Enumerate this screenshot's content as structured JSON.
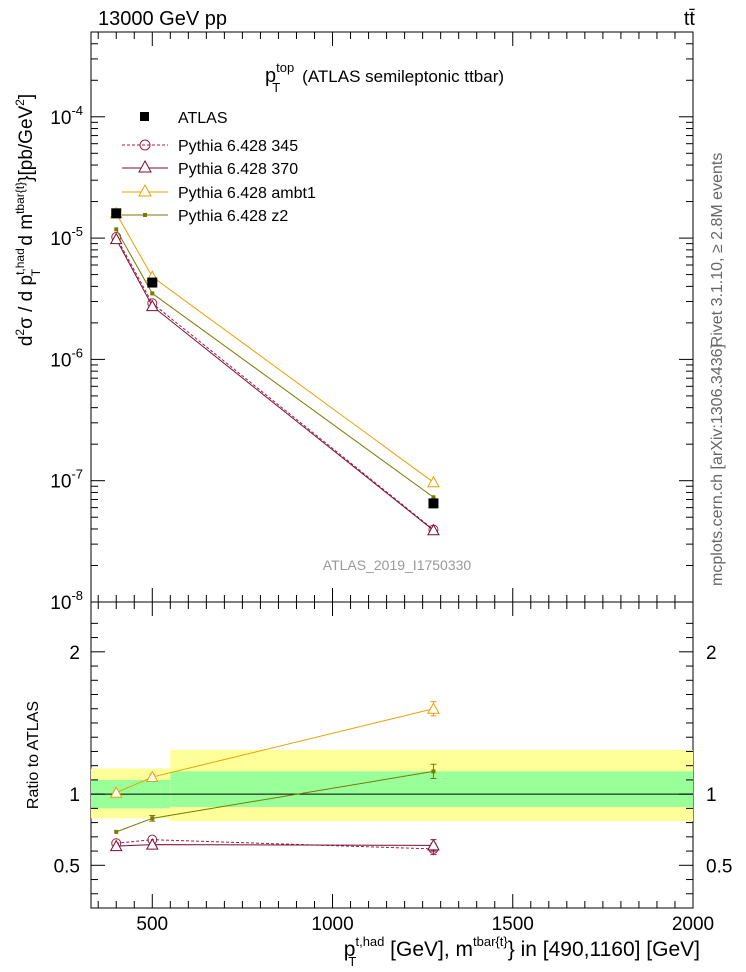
{
  "header": {
    "energy_label": "13000 GeV pp",
    "process_label": "tt̄"
  },
  "side_labels": {
    "rivet": "Rivet 3.1.10, ≥ 2.8M events",
    "mcplots": "mcplots.cern.ch [arXiv:1306.3436]"
  },
  "chart_data": {
    "type": "line",
    "title": "(ATLAS semileptonic ttbar)",
    "title_var": "p",
    "title_sup": "top",
    "title_sub": "T",
    "analysis_label": "ATLAS_2019_I1750330",
    "xlabel": "p_T^{t,had} [GeV], m^{tbar{t}} in [490,1160] [GeV]",
    "xlabel_parts": {
      "p": "p",
      "p_sup": "t,had",
      "p_sub": "T",
      "mid": " [GeV], m",
      "m_sup": "tbar{t}",
      "tail": "} in [490,1160] [GeV]"
    },
    "ylabel": "d²σ / d p_T^{t,had} d m^{tbar{t}}}[pb/GeV²]",
    "ylabel_parts": {
      "d": "d",
      "d_sup": "2",
      "sigma": "σ / d p",
      "p_sup": "t,had",
      "p_sub": "T",
      "mid": " d m",
      "m_sup": "tbar{t}",
      "tail": "}[pb/GeV",
      "tail_sup": "2",
      "close": "]"
    },
    "ratio_ylabel": "Ratio to ATLAS",
    "xlim": [
      330,
      2000
    ],
    "ylim": [
      1e-08,
      0.0005
    ],
    "yscale": "log",
    "ratio_ylim": [
      0.2,
      2.35
    ],
    "x_ticks": [
      500,
      1000,
      1500,
      2000
    ],
    "y_ticks": [
      {
        "base": "10",
        "exp": "-8",
        "value": 1e-08
      },
      {
        "base": "10",
        "exp": "-7",
        "value": 1e-07
      },
      {
        "base": "10",
        "exp": "-6",
        "value": 1e-06
      },
      {
        "base": "10",
        "exp": "-5",
        "value": 1e-05
      },
      {
        "base": "10",
        "exp": "-4",
        "value": 0.0001
      }
    ],
    "ratio_ticks": [
      {
        "label": "0.5",
        "value": 0.5
      },
      {
        "label": "1",
        "value": 1
      },
      {
        "label": "2",
        "value": 2
      }
    ],
    "legend_position": "top-left",
    "data": {
      "name": "ATLAS",
      "color": "#000000",
      "x": [
        400,
        500,
        1280
      ],
      "y": [
        1.6e-05,
        4.3e-06,
        6.5e-08
      ],
      "band_bins": [
        [
          330,
          550
        ],
        [
          550,
          2000
        ]
      ],
      "band_inner": [
        [
          0.9,
          1.1
        ],
        [
          0.91,
          1.16
        ]
      ],
      "band_outer": [
        [
          0.83,
          1.18
        ],
        [
          0.81,
          1.31
        ]
      ]
    },
    "series": [
      {
        "name": "Pythia 6.428 345",
        "color": "#a0203c",
        "marker": "open-circle",
        "dashed": true,
        "x": [
          400,
          500,
          1280
        ],
        "y": [
          1.02e-05,
          2.9e-06,
          3.95e-08
        ],
        "ratio": [
          0.655,
          0.68,
          0.615
        ],
        "ratio_err": [
          0.01,
          0.01,
          0.04
        ]
      },
      {
        "name": "Pythia 6.428 370",
        "color": "#7a0c3a",
        "marker": "open-triangle",
        "dashed": false,
        "x": [
          400,
          500,
          1280
        ],
        "y": [
          9.8e-06,
          2.75e-06,
          3.9e-08
        ],
        "ratio": [
          0.635,
          0.645,
          0.64
        ],
        "ratio_err": [
          0.01,
          0.01,
          0.04
        ]
      },
      {
        "name": "Pythia 6.428 ambt1",
        "color": "#e8a000",
        "marker": "open-triangle",
        "dashed": false,
        "x": [
          400,
          500,
          1280
        ],
        "y": [
          1.6e-05,
          4.8e-06,
          9.7e-08
        ],
        "ratio": [
          1.01,
          1.12,
          1.6
        ],
        "ratio_err": [
          0.01,
          0.02,
          0.05
        ]
      },
      {
        "name": "Pythia 6.428 z2",
        "color": "#7a7a00",
        "marker": "small-square",
        "dashed": false,
        "x": [
          400,
          500,
          1280
        ],
        "y": [
          1.18e-05,
          3.5e-06,
          7.3e-08
        ],
        "ratio": [
          0.735,
          0.83,
          1.16
        ],
        "ratio_err": [
          0.01,
          0.02,
          0.05
        ]
      }
    ]
  }
}
